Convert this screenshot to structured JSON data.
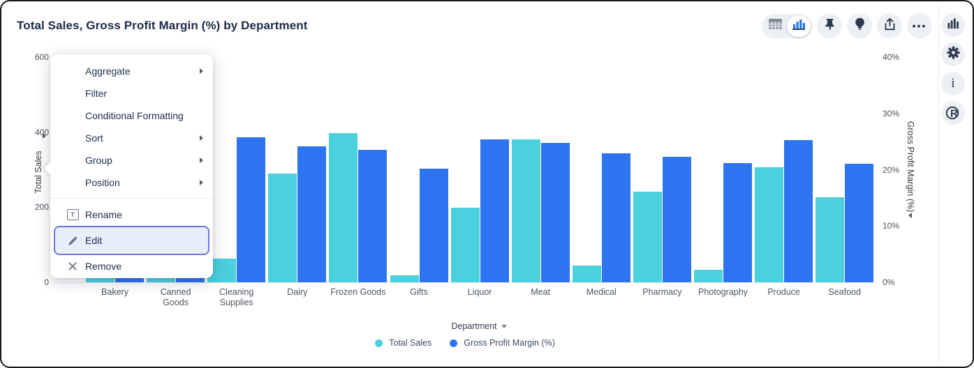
{
  "header": {
    "title": "Total Sales, Gross Profit Margin (%) by Department"
  },
  "toolbar": {
    "view_toggle": {
      "options": [
        "table-view",
        "chart-view"
      ],
      "active": "chart-view"
    },
    "icons": [
      "pin-icon",
      "lightbulb-icon",
      "share-icon",
      "more-options-icon"
    ]
  },
  "right_rail": {
    "icons": [
      "bar-chart-icon",
      "settings-gear-icon",
      "info-icon",
      "r-logo-icon"
    ]
  },
  "menu": {
    "top": [
      {
        "label": "Aggregate",
        "has_submenu": true
      },
      {
        "label": "Filter",
        "has_submenu": false
      },
      {
        "label": "Conditional Formatting",
        "has_submenu": false
      },
      {
        "label": "Sort",
        "has_submenu": true
      },
      {
        "label": "Group",
        "has_submenu": true
      },
      {
        "label": "Position",
        "has_submenu": true
      }
    ],
    "bottom": [
      {
        "label": "Rename",
        "icon": "text-box-icon",
        "highlighted": false
      },
      {
        "label": "Edit",
        "icon": "pencil-icon",
        "highlighted": true
      },
      {
        "label": "Remove",
        "icon": "x-icon",
        "highlighted": false
      }
    ]
  },
  "chart_data": {
    "type": "bar",
    "subtype": "grouped-dual-axis",
    "title": "Total Sales, Gross Profit Margin (%) by Department",
    "categories": [
      "Bakery",
      "Canned Goods",
      "Cleaning Supplies",
      "Dairy",
      "Frozen Goods",
      "Gifts",
      "Liquor",
      "Meat",
      "Medical",
      "Pharmacy",
      "Photography",
      "Produce",
      "Seafood"
    ],
    "series": [
      {
        "name": "Total Sales",
        "axis": "left",
        "color": "#4bd0de",
        "values": [
          150,
          180,
          63,
          290,
          397,
          19,
          199,
          381,
          45,
          241,
          33,
          306,
          227
        ]
      },
      {
        "name": "Gross Profit Margin (%)",
        "axis": "right",
        "color": "#2e74f0",
        "values": [
          24.0,
          23.4,
          25.8,
          24.1,
          23.5,
          20.2,
          25.4,
          24.8,
          22.9,
          22.3,
          21.2,
          25.3,
          21.1
        ]
      }
    ],
    "left_axis": {
      "title": "Total Sales",
      "tick_labels": [
        "0",
        "200",
        "400",
        "600"
      ],
      "tick_values": [
        0,
        200,
        400,
        600
      ],
      "ylim": [
        0,
        600
      ]
    },
    "right_axis": {
      "title": "Gross Profit Margin (%)",
      "tick_labels": [
        "0%",
        "10%",
        "20%",
        "30%",
        "40%"
      ],
      "tick_values": [
        0,
        10,
        20,
        30,
        40
      ],
      "ylim": [
        0,
        40
      ]
    },
    "x_axis": {
      "title": "Department"
    },
    "legend": {
      "position": "bottom",
      "entries": [
        "Total Sales",
        "Gross Profit Margin (%)"
      ]
    },
    "grid": false,
    "note_first_two_groups_occluded_by_menu": true
  },
  "colors": {
    "teal": "#4bd0de",
    "blue": "#2e74f0",
    "highlight_border": "#6b74e0",
    "highlight_fill": "#e9eefb",
    "navy": "#1b2a47"
  }
}
